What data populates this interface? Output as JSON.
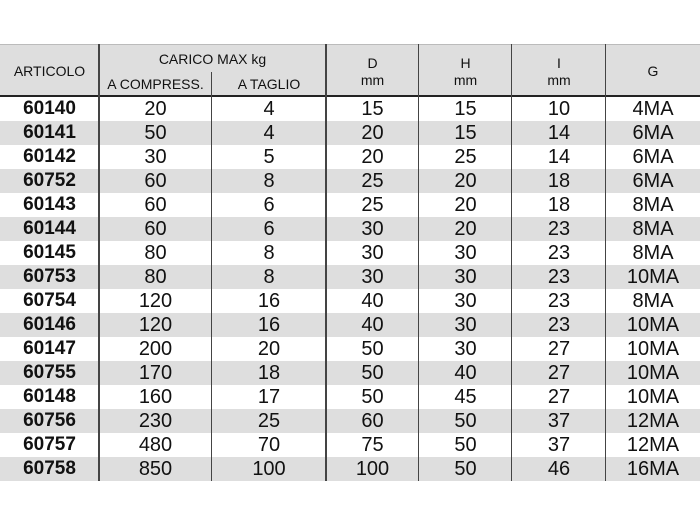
{
  "header": {
    "articolo": "ARTICOLO",
    "carico": "CARICO MAX kg",
    "compress": "A COMPRESS.",
    "taglio": "A TAGLIO",
    "d": "D",
    "d_unit": "mm",
    "h": "H",
    "h_unit": "mm",
    "i": "I",
    "i_unit": "mm",
    "g": "G"
  },
  "rows": [
    [
      "60140",
      "20",
      "4",
      "15",
      "15",
      "10",
      "4MA"
    ],
    [
      "60141",
      "50",
      "4",
      "20",
      "15",
      "14",
      "6MA"
    ],
    [
      "60142",
      "30",
      "5",
      "20",
      "25",
      "14",
      "6MA"
    ],
    [
      "60752",
      "60",
      "8",
      "25",
      "20",
      "18",
      "6MA"
    ],
    [
      "60143",
      "60",
      "6",
      "25",
      "20",
      "18",
      "8MA"
    ],
    [
      "60144",
      "60",
      "6",
      "30",
      "20",
      "23",
      "8MA"
    ],
    [
      "60145",
      "80",
      "8",
      "30",
      "30",
      "23",
      "8MA"
    ],
    [
      "60753",
      "80",
      "8",
      "30",
      "30",
      "23",
      "10MA"
    ],
    [
      "60754",
      "120",
      "16",
      "40",
      "30",
      "23",
      "8MA"
    ],
    [
      "60146",
      "120",
      "16",
      "40",
      "30",
      "23",
      "10MA"
    ],
    [
      "60147",
      "200",
      "20",
      "50",
      "30",
      "27",
      "10MA"
    ],
    [
      "60755",
      "170",
      "18",
      "50",
      "40",
      "27",
      "10MA"
    ],
    [
      "60148",
      "160",
      "17",
      "50",
      "45",
      "27",
      "10MA"
    ],
    [
      "60756",
      "230",
      "25",
      "60",
      "50",
      "37",
      "12MA"
    ],
    [
      "60757",
      "480",
      "70",
      "75",
      "50",
      "37",
      "12MA"
    ],
    [
      "60758",
      "850",
      "100",
      "100",
      "50",
      "46",
      "16MA"
    ]
  ]
}
